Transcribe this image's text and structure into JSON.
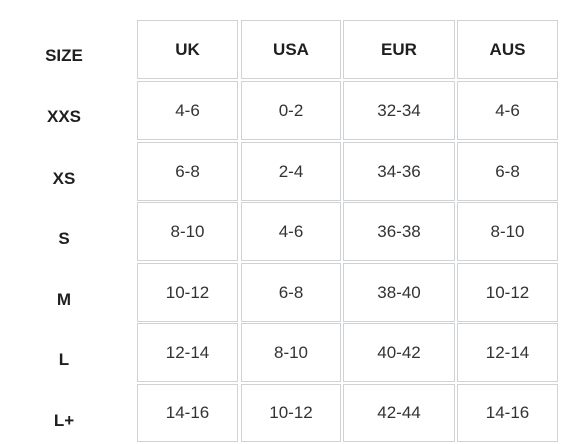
{
  "table": {
    "row_header_title": "SIZE",
    "columns": [
      "UK",
      "USA",
      "EUR",
      "AUS"
    ],
    "rows": [
      {
        "size": "XXS",
        "values": [
          "4-6",
          "0-2",
          "32-34",
          "4-6"
        ]
      },
      {
        "size": "XS",
        "values": [
          "6-8",
          "2-4",
          "34-36",
          "6-8"
        ]
      },
      {
        "size": "S",
        "values": [
          "8-10",
          "4-6",
          "36-38",
          "8-10"
        ]
      },
      {
        "size": "M",
        "values": [
          "10-12",
          "6-8",
          "38-40",
          "10-12"
        ]
      },
      {
        "size": "L",
        "values": [
          "12-14",
          "8-10",
          "40-42",
          "12-14"
        ]
      },
      {
        "size": "L+",
        "values": [
          "14-16",
          "10-12",
          "42-44",
          "14-16"
        ]
      }
    ]
  }
}
